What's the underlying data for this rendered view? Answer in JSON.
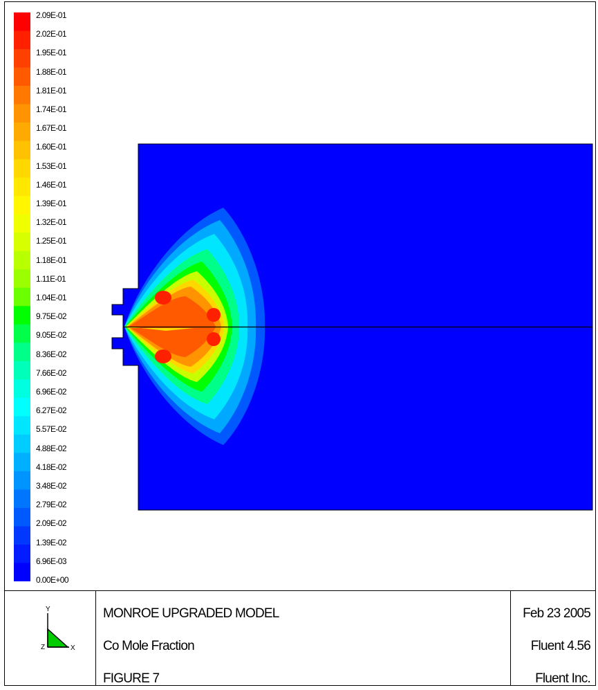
{
  "legend": {
    "labels": [
      "2.09E-01",
      "2.02E-01",
      "1.95E-01",
      "1.88E-01",
      "1.81E-01",
      "1.74E-01",
      "1.67E-01",
      "1.60E-01",
      "1.53E-01",
      "1.46E-01",
      "1.39E-01",
      "1.32E-01",
      "1.25E-01",
      "1.18E-01",
      "1.11E-01",
      "1.04E-01",
      "9.75E-02",
      "9.05E-02",
      "8.36E-02",
      "7.66E-02",
      "6.96E-02",
      "6.27E-02",
      "5.57E-02",
      "4.88E-02",
      "4.18E-02",
      "3.48E-02",
      "2.79E-02",
      "2.09E-02",
      "1.39E-02",
      "6.96E-03",
      "0.00E+00"
    ],
    "colors": [
      "#ff0000",
      "#ff2000",
      "#ff4000",
      "#ff5a00",
      "#ff7800",
      "#ff9300",
      "#ffaa00",
      "#ffc200",
      "#ffd800",
      "#ffe800",
      "#fff600",
      "#f0ff00",
      "#d8ff00",
      "#baff00",
      "#9cff00",
      "#6cff00",
      "#00ff00",
      "#00ff48",
      "#00ff88",
      "#00ffb8",
      "#00ffe0",
      "#00ffff",
      "#00e6ff",
      "#00ccff",
      "#00b0ff",
      "#0094ff",
      "#0076ff",
      "#0058ff",
      "#0038ff",
      "#001cff",
      "#0000ff"
    ]
  },
  "colors": {
    "domain": "#0000ff",
    "line": "#000000"
  },
  "title_block": {
    "axes": {
      "y": "Y",
      "z": "Z",
      "x": "X"
    },
    "title": "MONROE UPGRADED MODEL",
    "variable": "Co Mole Fraction",
    "figure": "FIGURE 7",
    "date": "Feb 23 2005",
    "version": "Fluent 4.56",
    "company": "Fluent Inc."
  }
}
